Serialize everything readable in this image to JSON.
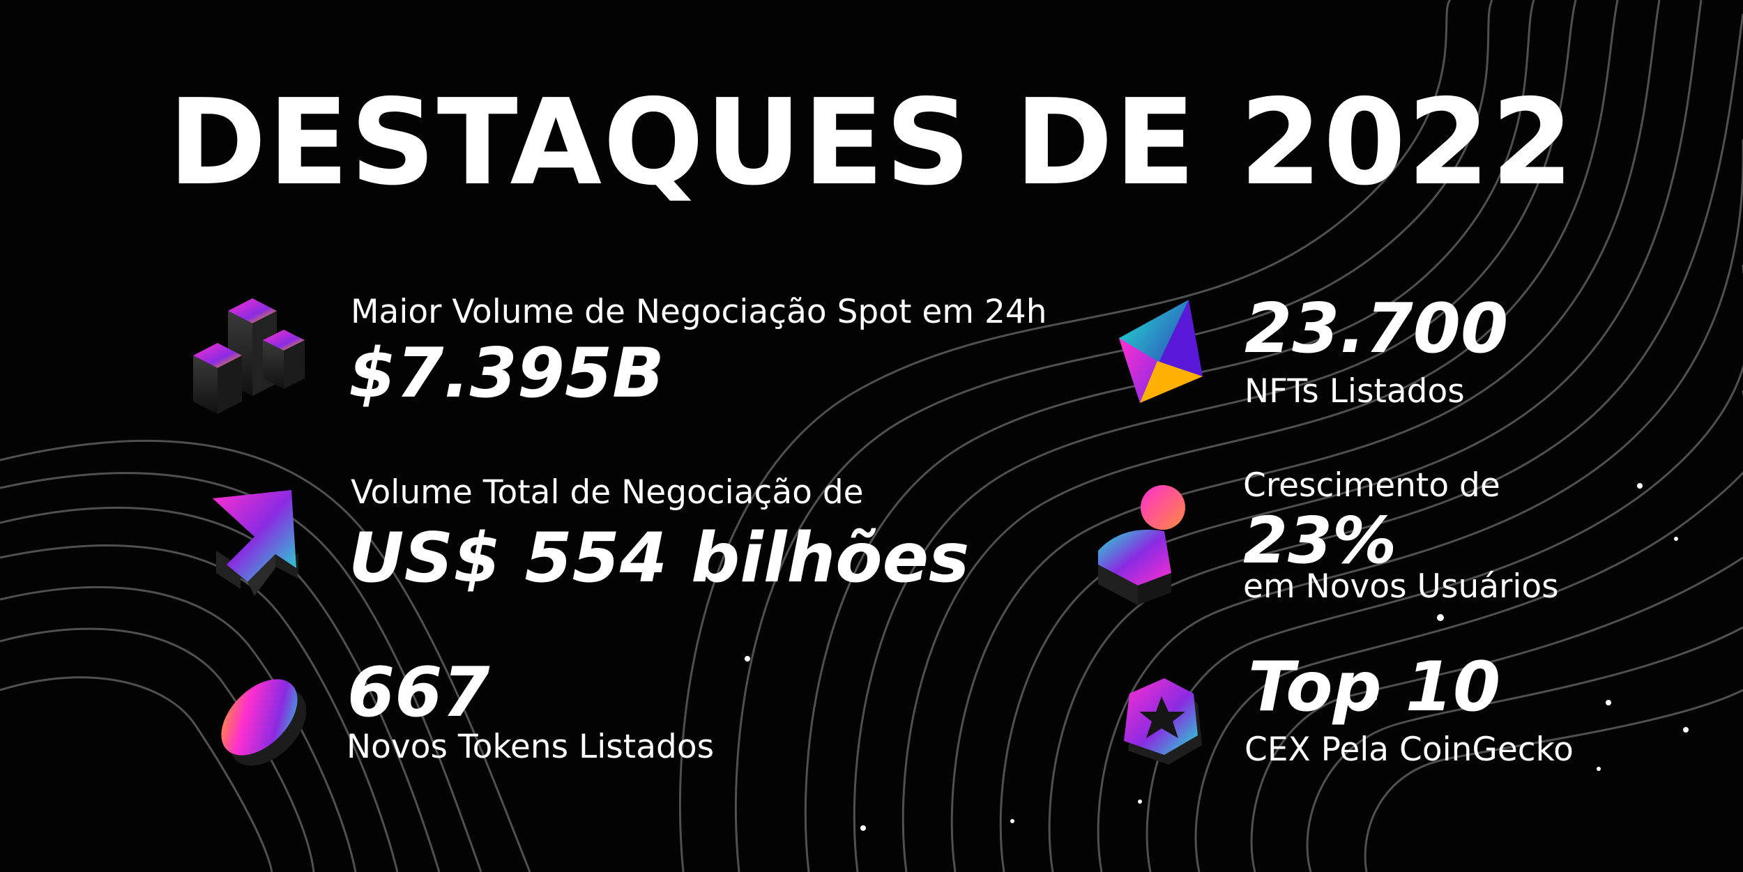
{
  "title": "DESTAQUES DE 2022",
  "left": [
    {
      "icon": "bar-blocks-icon",
      "top_label": "Maior Volume de Negociação Spot em 24h",
      "value": "$7.395B"
    },
    {
      "icon": "arrow-up-icon",
      "top_label": "Volume Total de Negociação de",
      "value": "US$ 554 bilhões"
    },
    {
      "icon": "token-coin-icon",
      "value": "667",
      "bottom_label": "Novos Tokens Listados"
    }
  ],
  "right": [
    {
      "icon": "nft-gem-icon",
      "value": "23.700",
      "bottom_label": "NFTs Listados"
    },
    {
      "icon": "user-icon",
      "top_label": "Crescimento de",
      "value": "23%",
      "bottom_label": "em Novos Usuários"
    },
    {
      "icon": "star-badge-icon",
      "value": "Top 10",
      "bottom_label": "CEX Pela CoinGecko"
    }
  ],
  "colors": {
    "background": "#030303",
    "text": "#ffffff",
    "gradient_pink": "#ff2fd0",
    "gradient_purple": "#8a2be2",
    "gradient_cyan": "#1ee3cf",
    "gradient_orange": "#ffb000"
  }
}
